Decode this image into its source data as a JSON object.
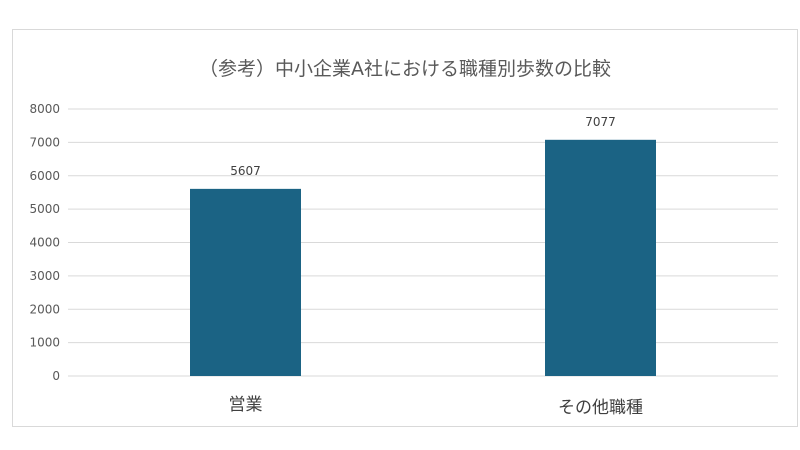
{
  "chart_data": {
    "type": "bar",
    "title": "（参考）中小企業A社における職種別歩数の比較",
    "categories": [
      "営業",
      "その他職種"
    ],
    "values": [
      5607,
      7077
    ],
    "ylim": [
      0,
      8000
    ],
    "yticks": [
      0,
      1000,
      2000,
      3000,
      4000,
      5000,
      6000,
      7000,
      8000
    ],
    "grid": true,
    "bar_color": "#1b6384",
    "gridline_color": "#d9d9d9",
    "data_labels": true,
    "legend": "none"
  }
}
